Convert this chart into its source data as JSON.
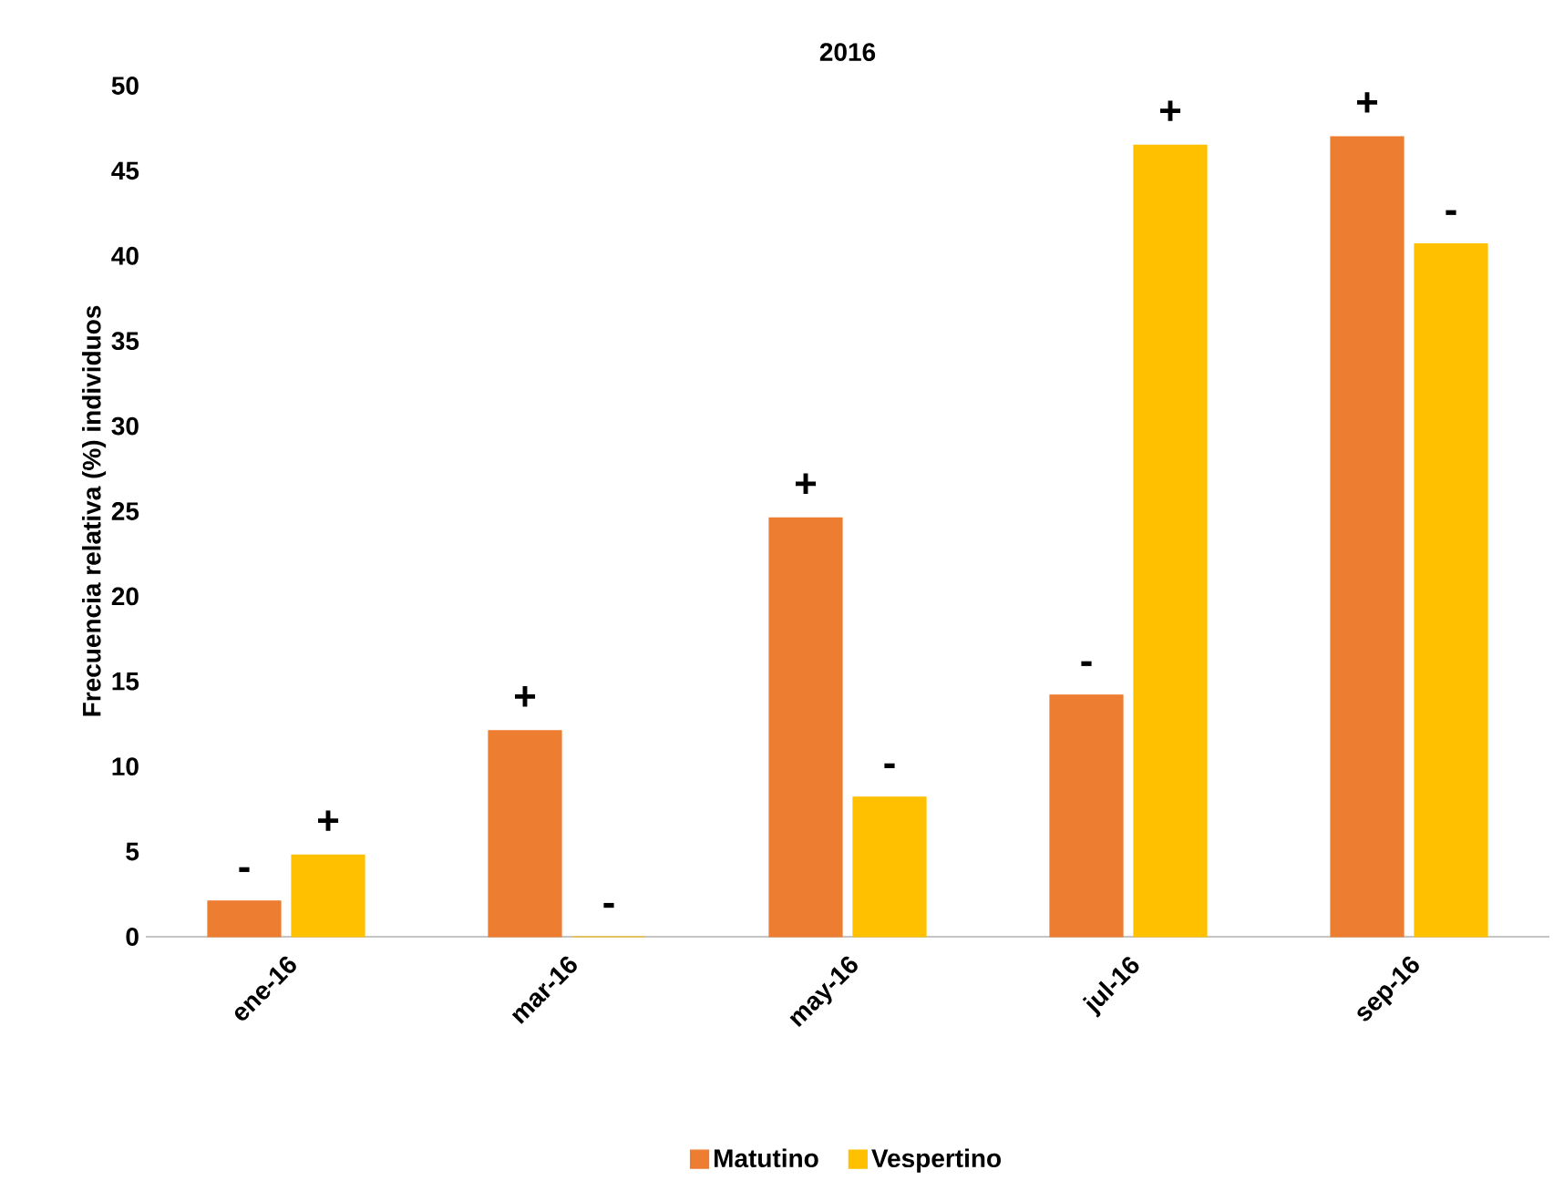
{
  "chart_data": {
    "type": "bar",
    "title": "2016",
    "ylabel": "Frecuencia relativa (%) individuos",
    "categories": [
      "ene-16",
      "mar-16",
      "may-16",
      "jul-16",
      "sep-16"
    ],
    "series": [
      {
        "name": "Matutino",
        "color": "#ed7d31",
        "values": [
          2.1,
          12.1,
          24.6,
          14.2,
          47.0
        ],
        "value_labels": [
          "-",
          "+",
          "+",
          "-",
          "+"
        ]
      },
      {
        "name": "Vespertino",
        "color": "#ffc000",
        "values": [
          4.8,
          0,
          8.2,
          46.5,
          40.7
        ],
        "value_labels": [
          "+",
          "-",
          "-",
          "+",
          "-"
        ]
      }
    ],
    "ylim": [
      0,
      50
    ],
    "yticks": [
      0,
      5,
      10,
      15,
      20,
      25,
      30,
      35,
      40,
      45,
      50
    ],
    "grid": false,
    "legend": "bottom"
  }
}
